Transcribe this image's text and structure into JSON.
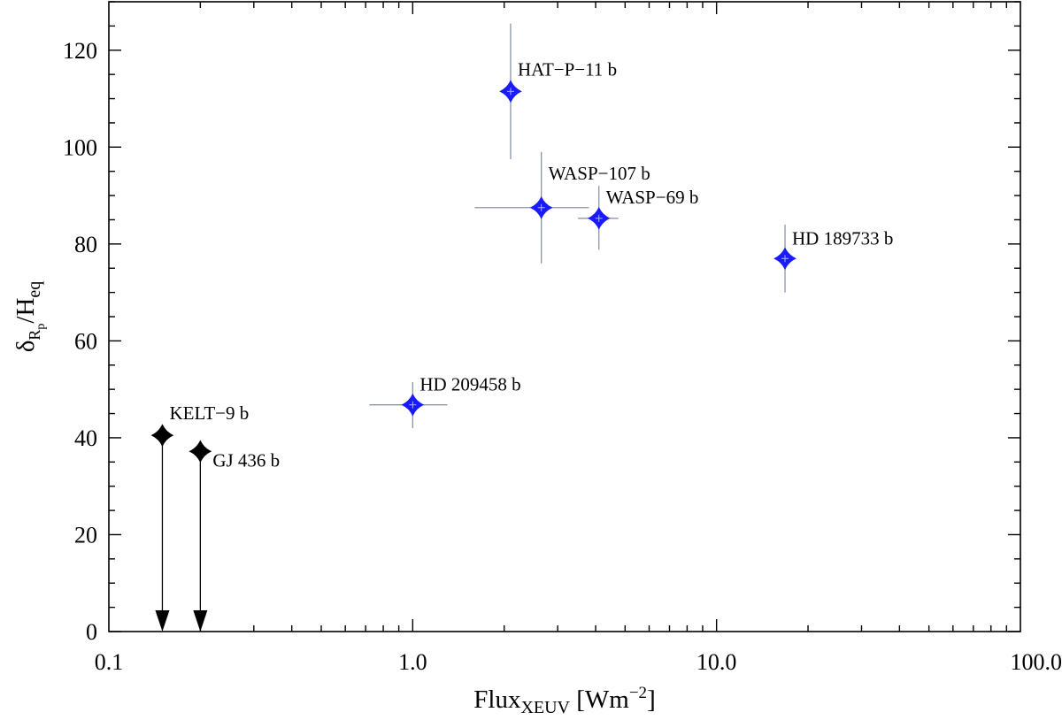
{
  "chart_data": {
    "type": "scatter",
    "x_scale": "log",
    "xlim": [
      0.1,
      100
    ],
    "ylim": [
      0,
      130
    ],
    "xticks": [
      {
        "value": 0.1,
        "label": "0.1"
      },
      {
        "value": 1,
        "label": "1.0"
      },
      {
        "value": 10,
        "label": "10.0"
      },
      {
        "value": 100,
        "label": "100.0"
      }
    ],
    "yticks": [
      0,
      20,
      40,
      60,
      80,
      100,
      120
    ],
    "xlabel": {
      "main": "Flux",
      "sub": "XEUV",
      "unit_pre": " [Wm",
      "unit_sup": "−2",
      "unit_post": "]"
    },
    "ylabel": {
      "delta": "δ",
      "sub1": "R",
      "sub2": "p",
      "slash": "/H",
      "sub3": "eq"
    },
    "grid": false,
    "legend": "none",
    "colors": {
      "measured": "#1a1aff",
      "upper_limit": "#000000",
      "errorbar": "#8a96a8"
    },
    "series": [
      {
        "kind": "measured",
        "points": [
          {
            "label": "HAT−P−11 b",
            "x": 2.1,
            "y": 111.5,
            "xerr": [
              2.1,
              2.1
            ],
            "yerr": [
              97.5,
              125.5
            ]
          },
          {
            "label": "WASP−107 b",
            "x": 2.65,
            "y": 87.5,
            "xerr": [
              1.6,
              3.8
            ],
            "yerr": [
              76,
              99
            ]
          },
          {
            "label": "WASP−69 b",
            "x": 4.1,
            "y": 85.3,
            "xerr": [
              3.5,
              4.75
            ],
            "yerr": [
              78.8,
              92
            ]
          },
          {
            "label": "HD 189733 b",
            "x": 16.8,
            "y": 77,
            "xerr": [
              16.8,
              16.8
            ],
            "yerr": [
              70,
              84
            ]
          },
          {
            "label": "HD 209458 b",
            "x": 1.0,
            "y": 46.8,
            "xerr": [
              0.72,
              1.3
            ],
            "yerr": [
              42,
              51.5
            ]
          }
        ]
      },
      {
        "kind": "upper_limit",
        "points": [
          {
            "label": "KELT−9 b",
            "x": 0.15,
            "y": 40.5
          },
          {
            "label": "GJ 436 b",
            "x": 0.2,
            "y": 37.2
          }
        ]
      }
    ]
  }
}
